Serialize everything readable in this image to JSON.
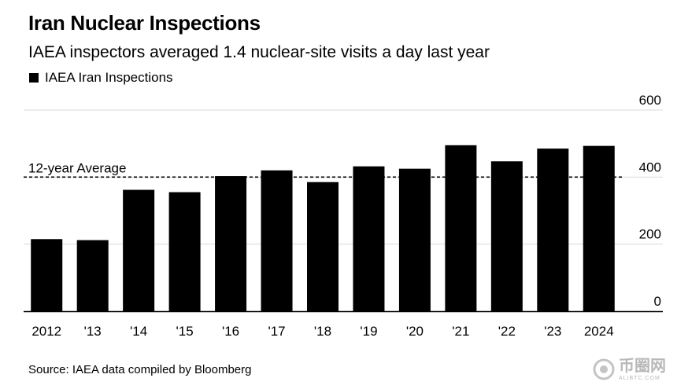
{
  "chart_data": {
    "type": "bar",
    "title": "Iran Nuclear Inspections",
    "subtitle": "IAEA inspectors averaged 1.4 nuclear-site visits a day last year",
    "legend": "IAEA Iran Inspections",
    "categories": [
      "2012",
      "'13",
      "'14",
      "'15",
      "'16",
      "'17",
      "'18",
      "'19",
      "'20",
      "'21",
      "'22",
      "'23",
      "2024"
    ],
    "series": [
      {
        "name": "IAEA Iran Inspections",
        "values": [
          215,
          212,
          362,
          355,
          403,
          420,
          385,
          432,
          425,
          495,
          447,
          485,
          493
        ]
      }
    ],
    "ylim": [
      0,
      600
    ],
    "yticks": [
      0,
      200,
      400,
      600
    ],
    "average": {
      "label": "12-year Average",
      "value": 400
    },
    "xlabel": "",
    "ylabel": "",
    "source": "Source: IAEA data compiled by Bloomberg",
    "colors": {
      "bar": "#000000",
      "grid": "#d9d9d9",
      "axis": "#000000"
    }
  },
  "watermark": {
    "main": "币圈网",
    "sub": "ALIBTC.COM"
  }
}
